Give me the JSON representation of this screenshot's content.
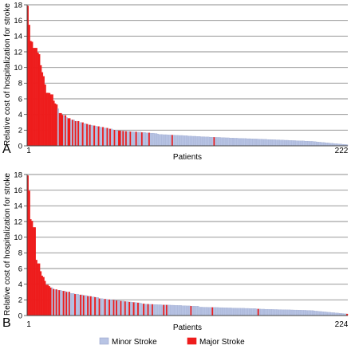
{
  "chart_data": [
    {
      "type": "bar",
      "panel_label": "A",
      "xlabel": "Patients",
      "ylabel": "Relative cost of hospitalization for stroke",
      "x_start_label": "1",
      "x_end_label": "222",
      "n_patients": 222,
      "ylim": [
        0,
        18
      ],
      "y_ticks": [
        0,
        2,
        4,
        6,
        8,
        10,
        12,
        14,
        16,
        18
      ],
      "grid": true,
      "series": [
        {
          "name": "Minor Stroke",
          "color": "#b8c4e4"
        },
        {
          "name": "Major Stroke",
          "color": "#ee1c1c"
        }
      ],
      "ranges": [
        {
          "to": 1,
          "val": [
            17.5,
            17.5
          ]
        },
        {
          "to": 2,
          "val": [
            15.8,
            15.8
          ]
        },
        {
          "to": 5,
          "val": [
            13.3,
            12.8
          ]
        },
        {
          "to": 8,
          "val": [
            12.6,
            12.2
          ]
        },
        {
          "to": 10,
          "val": [
            11.5,
            10.2
          ]
        },
        {
          "to": 13,
          "val": [
            9.6,
            7.8
          ]
        },
        {
          "to": 18,
          "val": [
            6.9,
            6.6
          ]
        },
        {
          "to": 22,
          "val": [
            5.8,
            4.8
          ]
        },
        {
          "to": 28,
          "val": [
            4.2,
            3.7
          ]
        },
        {
          "to": 40,
          "val": [
            3.5,
            2.9
          ]
        },
        {
          "to": 60,
          "val": [
            2.8,
            2.1
          ]
        },
        {
          "to": 90,
          "val": [
            2.0,
            1.6
          ]
        },
        {
          "to": 130,
          "val": [
            1.5,
            1.1
          ]
        },
        {
          "to": 170,
          "val": [
            1.1,
            0.8
          ]
        },
        {
          "to": 200,
          "val": [
            0.8,
            0.55
          ]
        },
        {
          "to": 222,
          "val": [
            0.5,
            0.15
          ]
        }
      ],
      "major_stroke_patients": [
        1,
        2,
        3,
        4,
        5,
        6,
        7,
        8,
        9,
        10,
        11,
        12,
        13,
        14,
        15,
        16,
        17,
        18,
        19,
        20,
        21,
        23,
        24,
        25,
        27,
        29,
        30,
        32,
        34,
        36,
        39,
        42,
        44,
        47,
        50,
        53,
        56,
        58,
        61,
        64,
        65,
        67,
        69,
        72,
        76,
        80,
        85,
        101,
        130
      ]
    },
    {
      "type": "bar",
      "panel_label": "B",
      "xlabel": "Patients",
      "ylabel": "Relative cost of hospitalization for stroke",
      "x_start_label": "1",
      "x_end_label": "224",
      "n_patients": 224,
      "ylim": [
        0,
        18
      ],
      "y_ticks": [
        0,
        2,
        4,
        6,
        8,
        10,
        12,
        14,
        16,
        18
      ],
      "grid": true,
      "series": [
        {
          "name": "Minor Stroke",
          "color": "#b8c4e4"
        },
        {
          "name": "Major Stroke",
          "color": "#ee1c1c"
        }
      ],
      "ranges": [
        {
          "to": 1,
          "val": [
            17.5,
            17.5
          ]
        },
        {
          "to": 2,
          "val": [
            16.3,
            16.3
          ]
        },
        {
          "to": 6,
          "val": [
            12.2,
            11.2
          ]
        },
        {
          "to": 9,
          "val": [
            7.0,
            6.6
          ]
        },
        {
          "to": 13,
          "val": [
            5.6,
            4.4
          ]
        },
        {
          "to": 18,
          "val": [
            4.0,
            3.5
          ]
        },
        {
          "to": 30,
          "val": [
            3.4,
            3.0
          ]
        },
        {
          "to": 50,
          "val": [
            2.9,
            2.3
          ]
        },
        {
          "to": 80,
          "val": [
            2.2,
            1.6
          ]
        },
        {
          "to": 120,
          "val": [
            1.5,
            1.2
          ]
        },
        {
          "to": 160,
          "val": [
            1.1,
            0.9
          ]
        },
        {
          "to": 200,
          "val": [
            0.85,
            0.65
          ]
        },
        {
          "to": 224,
          "val": [
            0.6,
            0.2
          ]
        }
      ],
      "major_stroke_patients": [
        1,
        2,
        3,
        4,
        5,
        6,
        7,
        8,
        9,
        10,
        11,
        12,
        13,
        14,
        15,
        16,
        17,
        19,
        21,
        23,
        26,
        28,
        30,
        34,
        38,
        40,
        43,
        45,
        48,
        51,
        55,
        58,
        61,
        63,
        66,
        69,
        72,
        75,
        78,
        82,
        85,
        88,
        96,
        98,
        115,
        130,
        162,
        224
      ]
    }
  ],
  "legend": {
    "items": [
      {
        "label": "Minor Stroke",
        "color": "#b8c4e4"
      },
      {
        "label": "Major Stroke",
        "color": "#ee1c1c"
      }
    ]
  }
}
